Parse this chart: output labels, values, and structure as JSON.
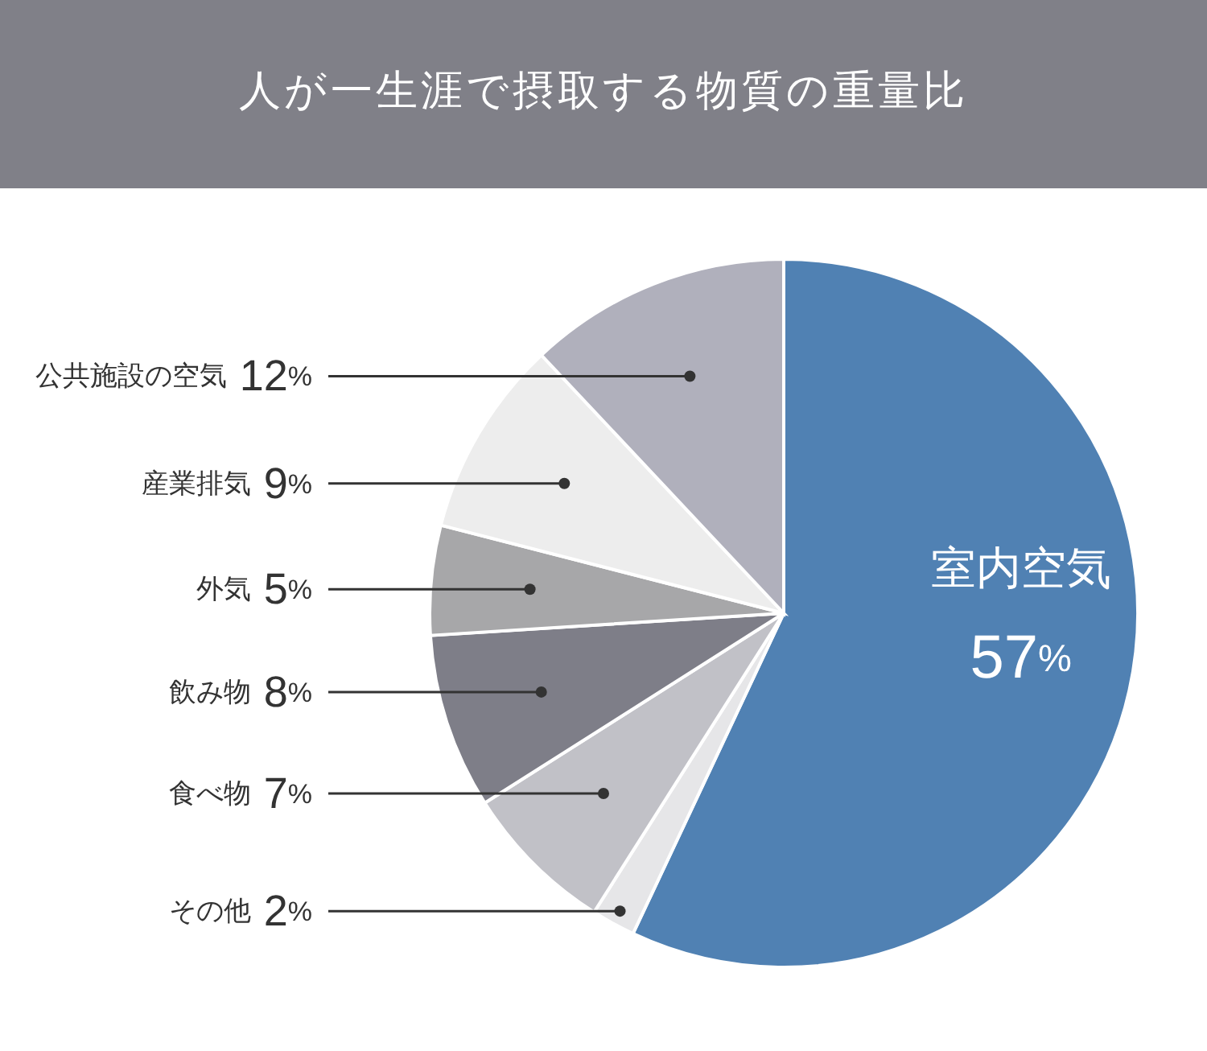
{
  "chart_data": {
    "type": "pie",
    "title": "人が一生涯で摂取する物質の重量比",
    "categories": [
      "室内空気",
      "その他",
      "食べ物",
      "飲み物",
      "外気",
      "産業排気",
      "公共施設の空気"
    ],
    "values": [
      57,
      2,
      7,
      8,
      5,
      9,
      12
    ],
    "value_labels": [
      "57%",
      "2%",
      "7%",
      "8%",
      "5%",
      "9%",
      "12%"
    ],
    "colors": [
      "#5081b3",
      "#e6e6e8",
      "#c1c1c7",
      "#7e7e88",
      "#a7a7a9",
      "#ededed",
      "#b0b0bc"
    ]
  }
}
